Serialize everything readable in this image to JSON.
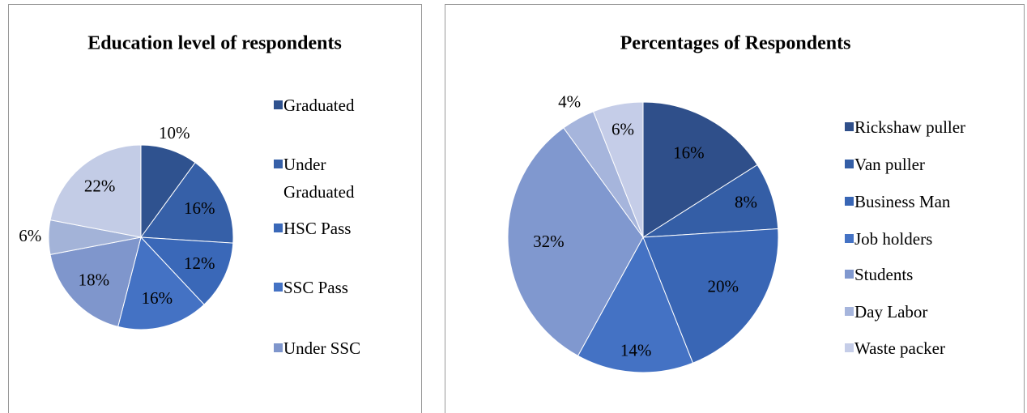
{
  "chart_data": [
    {
      "type": "pie",
      "title": "Education level of respondents",
      "categories": [
        "Graduated",
        "Under Graduated",
        "HSC Pass",
        "SSC Pass",
        "Under SSC",
        null,
        null
      ],
      "values": [
        10,
        16,
        12,
        16,
        18,
        6,
        22
      ],
      "value_labels": [
        "10%",
        "16%",
        "12%",
        "16%",
        "18%",
        "6%",
        "22%"
      ],
      "colors": [
        "#2f528f",
        "#3660a8",
        "#3a68b8",
        "#4472c4",
        "#7f96cc",
        "#a3b3d8",
        "#c3cce6"
      ]
    },
    {
      "type": "pie",
      "title": "Percentages of Respondents",
      "categories": [
        "Rickshaw puller",
        "Van puller",
        "Business Man",
        "Job holders",
        "Students",
        "Day Labor",
        "Waste packer"
      ],
      "values": [
        16,
        8,
        20,
        14,
        32,
        4,
        6
      ],
      "value_labels": [
        "16%",
        "8%",
        "20%",
        "14%",
        "32%",
        "4%",
        "6%"
      ],
      "colors": [
        "#2f4f8a",
        "#345ea6",
        "#3966b5",
        "#4472c4",
        "#8098cf",
        "#a6b5dc",
        "#c5cde8"
      ]
    }
  ]
}
